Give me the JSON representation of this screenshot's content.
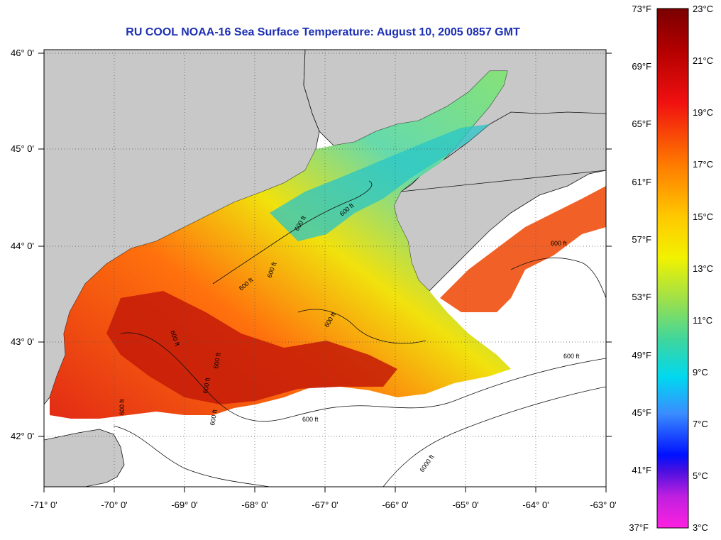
{
  "title": "RU COOL  NOAA-16  Sea Surface Temperature:  August 10, 2005 0857 GMT",
  "colors": {
    "title": "#1c2fb4",
    "land": "#c8c8c8",
    "nodata": "#ffffff"
  },
  "map": {
    "lon_range": [
      -71,
      -63
    ],
    "lat_range": [
      41.5,
      46.1
    ],
    "lon_labels": [
      "-71° 0'",
      "-70° 0'",
      "-69° 0'",
      "-68° 0'",
      "-67° 0'",
      "-66° 0'",
      "-65° 0'",
      "-64° 0'",
      "-63° 0'"
    ],
    "lat_labels": [
      "46° 0'",
      "45° 0'",
      "44° 0'",
      "43° 0'",
      "42° 0'"
    ],
    "contour_labels": [
      "600 ft",
      "600 ft",
      "600 ft",
      "600 ft",
      "600 ft",
      "600 ft",
      "600 ft",
      "600 ft",
      "600 ft",
      "600 ft",
      "600 ft",
      "600 ft",
      "600 ft",
      "6000 ft"
    ]
  },
  "colorbar": {
    "fahrenheit_labels": [
      "73°F",
      "69°F",
      "65°F",
      "61°F",
      "57°F",
      "53°F",
      "49°F",
      "45°F",
      "41°F",
      "37°F"
    ],
    "celsius_labels": [
      "23°C",
      "21°C",
      "19°C",
      "17°C",
      "15°C",
      "13°C",
      "11°C",
      "9°C",
      "7°C",
      "5°C",
      "3°C"
    ],
    "fahrenheit_range": [
      37,
      73
    ],
    "celsius_range": [
      3,
      23
    ]
  }
}
